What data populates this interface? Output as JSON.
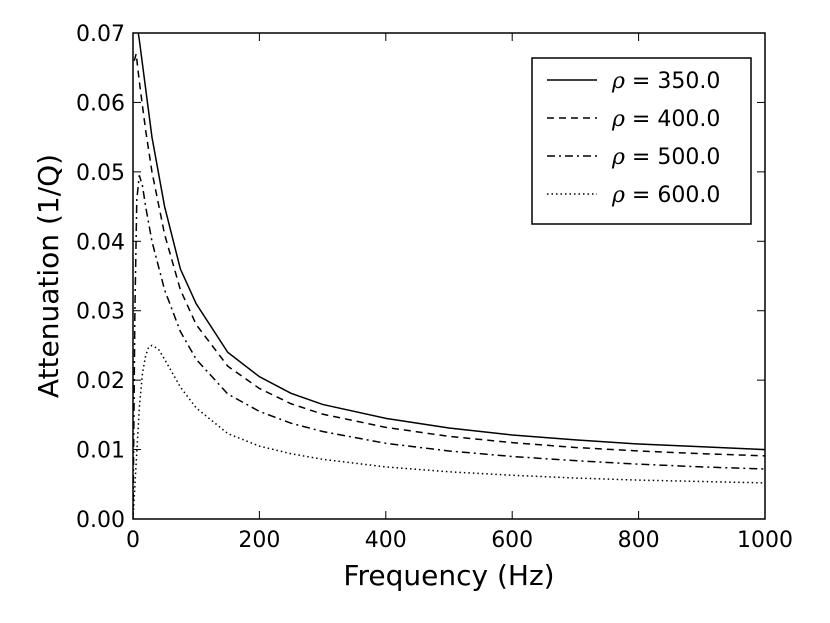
{
  "chart_data": {
    "type": "line",
    "title": "",
    "xlabel": "Frequency (Hz)",
    "ylabel": "Attenuation (1/Q)",
    "xlim": [
      0,
      1000
    ],
    "ylim": [
      0,
      0.07
    ],
    "x_ticks": [
      "0",
      "200",
      "400",
      "600",
      "800",
      "1000"
    ],
    "y_ticks": [
      "0.00",
      "0.01",
      "0.02",
      "0.03",
      "0.04",
      "0.05",
      "0.06",
      "0.07"
    ],
    "grid": false,
    "legend_position": "top-right",
    "colors": {
      "line": "#000000",
      "frame": "#000000",
      "background": "#ffffff"
    },
    "series": [
      {
        "name": "350.0",
        "legend_symbol": "ρ",
        "legend_eq": "=",
        "style": "solid",
        "x": [
          2,
          5,
          10,
          20,
          30,
          50,
          75,
          100,
          150,
          200,
          250,
          300,
          400,
          500,
          600,
          700,
          800,
          900,
          1000
        ],
        "y": [
          0.074,
          0.072,
          0.069,
          0.062,
          0.055,
          0.045,
          0.036,
          0.031,
          0.024,
          0.0205,
          0.0181,
          0.0165,
          0.0145,
          0.0131,
          0.0121,
          0.0114,
          0.0108,
          0.0104,
          0.01
        ]
      },
      {
        "name": "400.0",
        "legend_symbol": "ρ",
        "legend_eq": "=",
        "style": "dashed",
        "x": [
          2,
          5,
          10,
          20,
          30,
          50,
          75,
          100,
          150,
          200,
          250,
          300,
          400,
          500,
          600,
          700,
          800,
          900,
          1000
        ],
        "y": [
          0.066,
          0.067,
          0.063,
          0.056,
          0.05,
          0.041,
          0.033,
          0.028,
          0.022,
          0.0188,
          0.0166,
          0.0151,
          0.0132,
          0.0119,
          0.011,
          0.0103,
          0.0098,
          0.0094,
          0.0091
        ]
      },
      {
        "name": "500.0",
        "legend_symbol": "ρ",
        "legend_eq": "=",
        "style": "dashdot",
        "x": [
          0,
          3,
          6,
          10,
          15,
          20,
          30,
          50,
          75,
          100,
          150,
          200,
          250,
          300,
          400,
          500,
          600,
          700,
          800,
          900,
          1000
        ],
        "y": [
          0.0,
          0.03,
          0.046,
          0.0495,
          0.048,
          0.045,
          0.04,
          0.033,
          0.027,
          0.023,
          0.018,
          0.0155,
          0.0138,
          0.0126,
          0.0109,
          0.0098,
          0.009,
          0.0084,
          0.0079,
          0.0075,
          0.0072
        ]
      },
      {
        "name": "600.0",
        "legend_symbol": "ρ",
        "legend_eq": "=",
        "style": "dotted",
        "x": [
          0,
          5,
          10,
          15,
          20,
          25,
          30,
          40,
          50,
          75,
          100,
          150,
          200,
          250,
          300,
          400,
          500,
          600,
          700,
          800,
          900,
          1000
        ],
        "y": [
          0.0,
          0.008,
          0.016,
          0.021,
          0.0235,
          0.0248,
          0.025,
          0.0245,
          0.023,
          0.019,
          0.016,
          0.0123,
          0.0105,
          0.0094,
          0.0086,
          0.0075,
          0.0068,
          0.0063,
          0.0059,
          0.0056,
          0.0054,
          0.0052
        ]
      }
    ]
  }
}
